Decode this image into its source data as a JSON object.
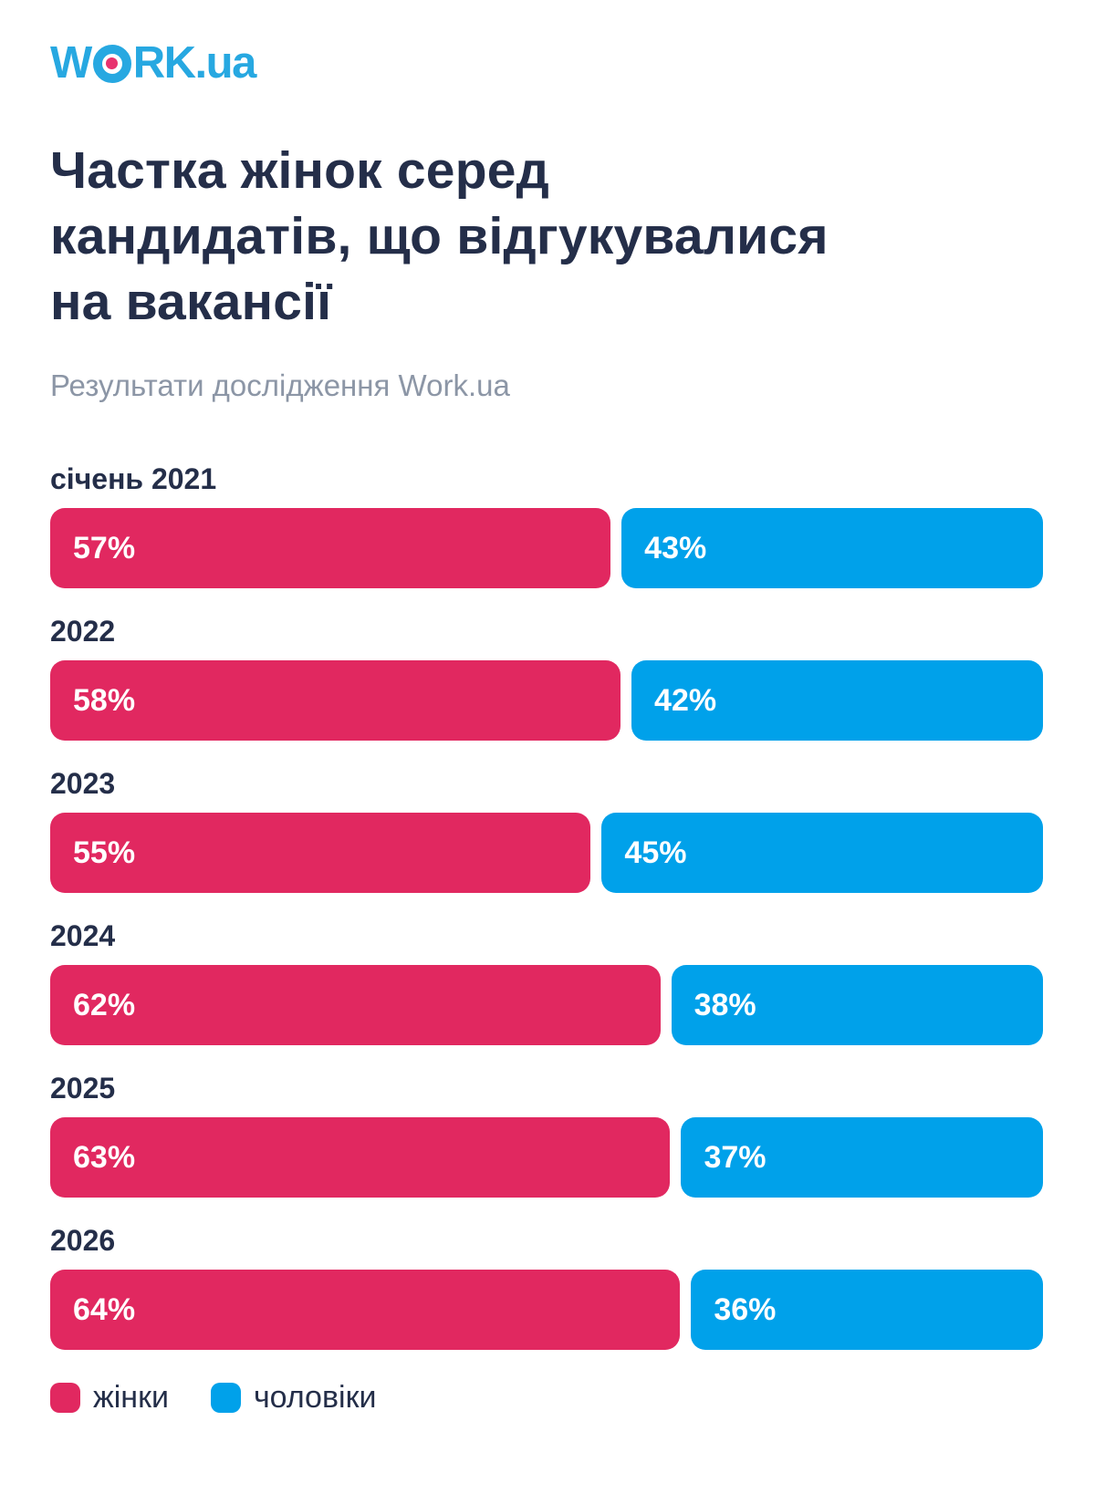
{
  "logo": {
    "part_w": "W",
    "part_rk": "RK",
    "suffix": ".ua",
    "blue": "#27A8E1",
    "dot_color": "#E8326E"
  },
  "title": {
    "line1": "Частка жінок серед",
    "line2": "кандидатів, що відгукувалися",
    "line3": "на вакансії"
  },
  "subtitle": "Результати дослідження Work.ua",
  "colors": {
    "women_pink": "#E12860",
    "men_blue": "#00A1EA",
    "heading_navy": "#242E49",
    "subtitle_gray": "#8C96A6",
    "background": "#FFFFFF"
  },
  "chart_data": {
    "type": "bar",
    "orientation": "horizontal",
    "stacked": true,
    "title": "Частка жінок серед кандидатів, що відгукувалися на вакансії",
    "subtitle": "Результати дослідження Work.ua",
    "categories": [
      "січень 2021",
      "2022",
      "2023",
      "2024",
      "2025",
      "2026"
    ],
    "series": [
      {
        "name": "жінки",
        "color": "#E12860",
        "values": [
          57,
          58,
          55,
          62,
          63,
          64
        ]
      },
      {
        "name": "чоловіки",
        "color": "#00A1EA",
        "values": [
          43,
          42,
          45,
          38,
          37,
          36
        ]
      }
    ],
    "value_suffix": "%",
    "value_labels": "inside-start",
    "axis": "none",
    "grid": false,
    "legend_position": "bottom"
  }
}
